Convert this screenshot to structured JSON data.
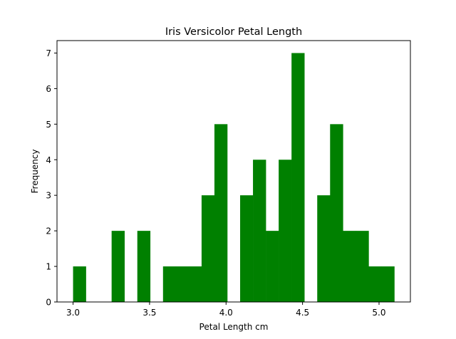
{
  "chart_data": {
    "type": "bar",
    "title": "Iris Versicolor Petal Length",
    "xlabel": "Petal Length cm",
    "ylabel": "Frequency",
    "xlim": [
      2.895,
      5.205
    ],
    "ylim": [
      0,
      7.35
    ],
    "xticks": [
      3.0,
      3.5,
      4.0,
      4.5,
      5.0
    ],
    "xtick_labels": [
      "3.0",
      "3.5",
      "4.0",
      "4.5",
      "5.0"
    ],
    "yticks": [
      0,
      1,
      2,
      3,
      4,
      5,
      6,
      7
    ],
    "ytick_labels": [
      "0",
      "1",
      "2",
      "3",
      "4",
      "5",
      "6",
      "7"
    ],
    "grid": false,
    "bar_color": "#008000",
    "bin_start": 3.0,
    "bin_width": 0.084,
    "values": [
      1,
      0,
      0,
      2,
      0,
      2,
      0,
      1,
      1,
      1,
      3,
      5,
      0,
      3,
      4,
      2,
      4,
      7,
      0,
      3,
      5,
      2,
      2,
      1,
      1
    ]
  }
}
